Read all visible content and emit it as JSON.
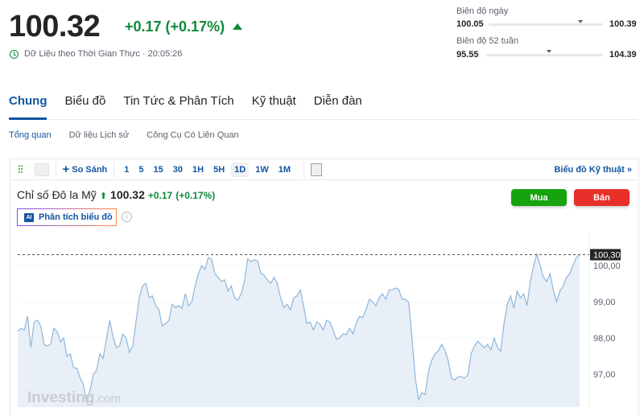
{
  "quote": {
    "price": "100.32",
    "change": "+0.17 (+0.17%)",
    "direction": "up",
    "realtime_label": "Dữ Liệu theo Thời Gian Thực · 20:05:26",
    "up_color": "#0e8a3a"
  },
  "ranges": [
    {
      "label": "Biên độ ngày",
      "low": "100.05",
      "high": "100.39",
      "position_pct": 80
    },
    {
      "label": "Biên độ 52 tuần",
      "low": "95.55",
      "high": "104.39",
      "position_pct": 49
    }
  ],
  "tabs": [
    {
      "label": "Chung",
      "active": true
    },
    {
      "label": "Biểu đồ"
    },
    {
      "label": "Tin Tức & Phân Tích"
    },
    {
      "label": "Kỹ thuật"
    },
    {
      "label": "Diễn đàn"
    }
  ],
  "subtabs": [
    {
      "label": "Tổng quan",
      "active": true
    },
    {
      "label": "Dữ liệu Lịch sử"
    },
    {
      "label": "Công Cụ Có Liên Quan"
    }
  ],
  "toolbar": {
    "compare": "So Sánh",
    "timeframes": [
      "1",
      "5",
      "15",
      "30",
      "1H",
      "5H",
      "1D",
      "1W",
      "1M"
    ],
    "selected": "1D",
    "tech_chart": "Biểu đồ Kỹ thuật »"
  },
  "instrument": {
    "name": "Chỉ số Đô la Mỹ",
    "price": "100.32",
    "change": "+0.17",
    "change_pct": "(+0.17%)"
  },
  "actions": {
    "buy": "Mua",
    "sell": "Bán",
    "buy_color": "#16a30f",
    "sell_color": "#e8302a"
  },
  "ai_button": "Phân tích biểu đồ",
  "info_icon": "i",
  "watermark": {
    "brand": "Investing",
    ".com": ".com"
  },
  "chart_data": {
    "type": "area",
    "yticks": [
      "100,00",
      "99,00",
      "98,00",
      "97,00"
    ],
    "ytick_values": [
      100,
      99,
      98,
      97
    ],
    "ylim": [
      95.8,
      100.7
    ],
    "last_label": "100,30",
    "last_value": 100.3,
    "line_color": "#8fb6dc",
    "fill_color": "#e8eff6",
    "values": [
      98.18,
      98.27,
      98.22,
      98.6,
      97.73,
      98.44,
      98.49,
      98.33,
      97.82,
      97.78,
      97.82,
      98.27,
      98.18,
      97.89,
      98.0,
      97.49,
      97.56,
      97.18,
      97.16,
      96.89,
      96.71,
      96.22,
      96.56,
      96.98,
      97.11,
      97.56,
      97.44,
      97.96,
      98.49,
      98.04,
      97.73,
      97.78,
      98.11,
      98.0,
      97.6,
      97.78,
      98.44,
      99.11,
      99.44,
      99.51,
      99.11,
      99.16,
      98.89,
      98.78,
      98.33,
      98.4,
      98.49,
      98.93,
      98.84,
      98.89,
      98.82,
      99.22,
      98.89,
      99.0,
      99.44,
      99.78,
      100.0,
      99.89,
      100.22,
      100.18,
      99.78,
      99.67,
      99.56,
      99.6,
      99.29,
      99.44,
      99.11,
      99.04,
      99.22,
      99.56,
      100.18,
      100.11,
      100.16,
      100.13,
      99.78,
      99.73,
      99.6,
      99.51,
      99.67,
      99.51,
      99.11,
      98.84,
      98.93,
      98.78,
      99.11,
      99.16,
      99.33,
      98.89,
      98.4,
      98.44,
      98.22,
      98.44,
      98.38,
      98.22,
      98.49,
      98.44,
      98.22,
      97.96,
      98.0,
      98.11,
      98.09,
      98.27,
      98.11,
      98.4,
      98.6,
      98.56,
      98.78,
      99.07,
      99.0,
      98.89,
      99.11,
      99.22,
      99.07,
      99.33,
      99.33,
      99.38,
      99.33,
      99.07,
      99.07,
      98.98,
      98.0,
      96.89,
      96.29,
      96.49,
      96.44,
      97.07,
      97.38,
      97.56,
      97.64,
      97.82,
      97.67,
      97.38,
      96.89,
      96.84,
      96.93,
      96.93,
      96.89,
      96.98,
      97.56,
      97.78,
      97.91,
      97.82,
      97.73,
      97.82,
      97.67,
      98.0,
      97.73,
      97.64,
      98.4,
      98.93,
      99.16,
      98.82,
      99.29,
      99.11,
      99.22,
      98.89,
      99.56,
      100.0,
      100.31,
      100.0,
      99.67,
      99.56,
      99.78,
      99.33,
      99.0,
      99.29,
      99.44,
      99.67,
      99.78,
      100.0,
      100.22,
      100.3
    ]
  }
}
